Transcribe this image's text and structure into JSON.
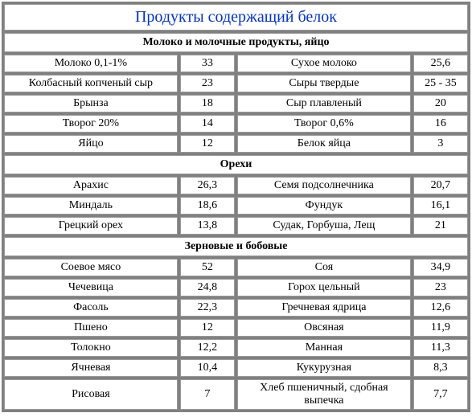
{
  "title": "Продукты содержащий белок",
  "sections": [
    {
      "name": "Молоко и молочные продукты, яйцо",
      "rows": [
        {
          "nameA": "Молоко 0,1-1%",
          "valA": "33",
          "nameB": "Сухое молоко",
          "valB": "25,6"
        },
        {
          "nameA": "Колбасный копченый сыр",
          "valA": "23",
          "nameB": "Сыры твердые",
          "valB": "25 - 35"
        },
        {
          "nameA": "Брынза",
          "valA": "18",
          "nameB": "Сыр плавленый",
          "valB": "20"
        },
        {
          "nameA": "Творог 20%",
          "valA": "14",
          "nameB": "Творог 0,6%",
          "valB": "16"
        },
        {
          "nameA": "Яйцо",
          "valA": "12",
          "nameB": "Белок яйца",
          "valB": "3"
        }
      ]
    },
    {
      "name": "Орехи",
      "rows": [
        {
          "nameA": "Арахис",
          "valA": "26,3",
          "nameB": "Семя подсолнечника",
          "valB": "20,7"
        },
        {
          "nameA": "Миндаль",
          "valA": "18,6",
          "nameB": "Фундук",
          "valB": "16,1"
        },
        {
          "nameA": "Грецкий орех",
          "valA": "13,8",
          "nameB": "Судак, Горбуша, Лещ",
          "valB": "21"
        }
      ]
    },
    {
      "name": "Зерновые и бобовые",
      "rows": [
        {
          "nameA": "Соевое мясо",
          "valA": "52",
          "nameB": "Соя",
          "valB": "34,9"
        },
        {
          "nameA": "Чечевица",
          "valA": "24,8",
          "nameB": "Горох цельный",
          "valB": "23"
        },
        {
          "nameA": "Фасоль",
          "valA": "22,3",
          "nameB": "Гречневая ядрица",
          "valB": "12,6"
        },
        {
          "nameA": "Пшено",
          "valA": "12",
          "nameB": "Овсяная",
          "valB": "11,9"
        },
        {
          "nameA": "Толокно",
          "valA": "12,2",
          "nameB": "Манная",
          "valB": "11,3"
        },
        {
          "nameA": "Ячневая",
          "valA": "10,4",
          "nameB": "Кукурузная",
          "valB": "8,3"
        },
        {
          "nameA": "Рисовая",
          "valA": "7",
          "nameB": "Хлеб пшеничный, сдобная выпечка",
          "valB": "7,7"
        }
      ]
    }
  ]
}
